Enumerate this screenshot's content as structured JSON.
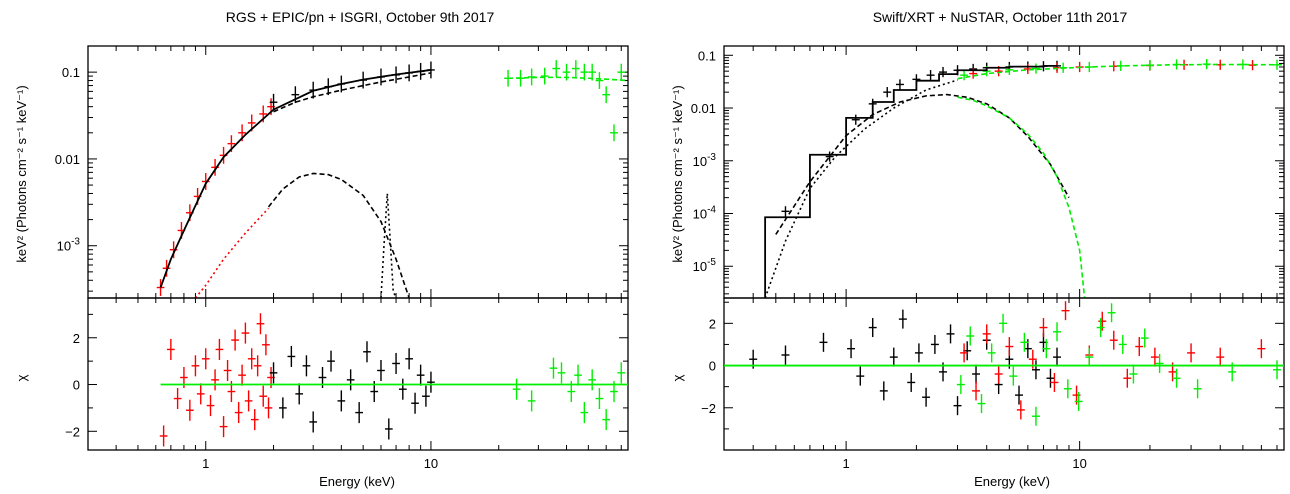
{
  "colors": {
    "black": "#000000",
    "red": "#ff0000",
    "green": "#00ee00"
  },
  "chart_data": [
    {
      "type": "scatter",
      "title": "RGS + EPIC/pn + ISGRI, October 9th 2017",
      "xlabel": "Energy (keV)",
      "xscale": "log",
      "xlim": [
        0.3,
        75
      ],
      "xticks": [
        {
          "value": 1,
          "label": "1"
        },
        {
          "value": 10,
          "label": "10"
        }
      ],
      "top": {
        "ylabel": "keV² (Photons cm⁻² s⁻¹ keV⁻¹)",
        "yscale": "log",
        "ylim": [
          0.00025,
          0.2
        ],
        "yticks": [
          {
            "value": 0.1,
            "label": "0.1"
          },
          {
            "value": 0.01,
            "label": "0.01"
          },
          {
            "value": 0.001,
            "label": "10",
            "sup": "-3"
          }
        ],
        "series": [
          {
            "color": "red",
            "style": "data",
            "x": [
              0.63,
              0.67,
              0.72,
              0.78,
              0.85,
              0.92,
              1.0,
              1.1,
              1.2,
              1.3,
              1.45,
              1.6,
              1.8,
              1.95
            ],
            "y": [
              0.00033,
              0.00055,
              0.0009,
              0.0015,
              0.0024,
              0.0037,
              0.0055,
              0.008,
              0.011,
              0.015,
              0.02,
              0.026,
              0.033,
              0.04
            ]
          },
          {
            "color": "black",
            "style": "data",
            "x": [
              2.0,
              2.5,
              3.0,
              3.5,
              4.0,
              5.0,
              6.0,
              7.0,
              8.0,
              9.0,
              10.0
            ],
            "y": [
              0.045,
              0.055,
              0.062,
              0.068,
              0.073,
              0.081,
              0.088,
              0.093,
              0.098,
              0.102,
              0.106
            ]
          },
          {
            "color": "green",
            "style": "data",
            "x": [
              22,
              25,
              28,
              32,
              36,
              40,
              44,
              48,
              52,
              56,
              60,
              65,
              70
            ],
            "y": [
              0.085,
              0.085,
              0.088,
              0.09,
              0.11,
              0.1,
              0.11,
              0.1,
              0.1,
              0.08,
              0.055,
              0.02,
              0.1
            ]
          },
          {
            "color": "black",
            "style": "solid",
            "x": [
              0.63,
              0.7,
              0.8,
              0.9,
              1.0,
              1.2,
              1.5,
              2.0,
              3.0,
              4.0,
              5.0,
              7.0,
              10.0
            ],
            "y": [
              0.00033,
              0.0007,
              0.0015,
              0.0029,
              0.0052,
              0.0105,
              0.019,
              0.037,
              0.061,
              0.073,
              0.082,
              0.094,
              0.106
            ]
          },
          {
            "color": "black",
            "style": "dashed",
            "x": [
              2.0,
              2.5,
              3.0,
              4.0,
              5.0,
              6.0,
              8.0,
              10.0
            ],
            "y": [
              0.035,
              0.045,
              0.052,
              0.062,
              0.07,
              0.077,
              0.088,
              0.098
            ]
          },
          {
            "color": "green",
            "style": "dashed",
            "x": [
              22,
              30,
              40,
              50,
              60,
              75
            ],
            "y": [
              0.085,
              0.087,
              0.087,
              0.085,
              0.083,
              0.08
            ]
          },
          {
            "color": "red",
            "style": "dotted",
            "x": [
              0.9,
              1.0,
              1.2,
              1.5,
              1.9
            ],
            "y": [
              0.00025,
              0.00035,
              0.0007,
              0.0014,
              0.0027
            ]
          },
          {
            "color": "black",
            "style": "dashed",
            "x": [
              1.9,
              2.2,
              2.6,
              3.0,
              3.5,
              4.0,
              5.0,
              6.0,
              7.0,
              8.0
            ],
            "y": [
              0.0028,
              0.0045,
              0.0062,
              0.0068,
              0.0066,
              0.0058,
              0.0038,
              0.0019,
              0.0007,
              0.00025
            ]
          },
          {
            "color": "black",
            "style": "dotted",
            "x": [
              6.0,
              6.2,
              6.4,
              6.6,
              6.8,
              7.0
            ],
            "y": [
              0.00025,
              0.0011,
              0.004,
              0.0011,
              0.0003,
              0.00025
            ]
          }
        ]
      },
      "bottom": {
        "ylabel": "χ",
        "ylim": [
          -2.8,
          3.7
        ],
        "yticks": [
          {
            "value": 2,
            "label": "2"
          },
          {
            "value": 0,
            "label": "0"
          },
          {
            "value": -2,
            "label": "−2"
          }
        ],
        "series": [
          {
            "color": "red",
            "style": "data",
            "x": [
              0.65,
              0.7,
              0.75,
              0.8,
              0.85,
              0.9,
              0.95,
              1.0,
              1.05,
              1.1,
              1.15,
              1.2,
              1.25,
              1.3,
              1.35,
              1.4,
              1.45,
              1.5,
              1.55,
              1.6,
              1.65,
              1.7,
              1.75,
              1.8,
              1.85,
              1.9,
              1.95
            ],
            "y": [
              -2.2,
              1.5,
              -0.6,
              0.3,
              -1.1,
              0.8,
              -0.4,
              1.1,
              -0.9,
              0.2,
              1.5,
              -1.8,
              0.6,
              -0.3,
              1.9,
              -1.2,
              0.4,
              2.2,
              -0.7,
              1.1,
              -1.5,
              0.8,
              2.6,
              -0.5,
              1.7,
              -1.0,
              0.3
            ]
          },
          {
            "color": "black",
            "style": "data",
            "x": [
              2.0,
              2.2,
              2.4,
              2.6,
              2.8,
              3.0,
              3.3,
              3.6,
              4.0,
              4.4,
              4.8,
              5.2,
              5.6,
              6.0,
              6.5,
              7.0,
              7.5,
              8.0,
              8.5,
              9.0,
              9.5,
              10.0
            ],
            "y": [
              0.5,
              -1.0,
              1.2,
              -0.4,
              0.8,
              -1.6,
              0.3,
              1.0,
              -0.7,
              0.2,
              -1.2,
              1.4,
              -0.3,
              0.6,
              -1.9,
              0.9,
              -0.2,
              1.1,
              -0.8,
              0.4,
              -0.5,
              0.1
            ]
          },
          {
            "color": "green",
            "style": "data",
            "x": [
              24,
              28,
              35,
              38,
              42,
              45,
              48,
              52,
              56,
              60,
              65,
              70
            ],
            "y": [
              -0.2,
              -0.7,
              0.7,
              0.5,
              -0.3,
              0.4,
              -1.2,
              0.2,
              -0.6,
              -1.5,
              -0.3,
              0.5
            ]
          },
          {
            "color": "green",
            "style": "solid",
            "x": [
              0.63,
              75
            ],
            "y": [
              0.0,
              0.0
            ]
          }
        ]
      }
    },
    {
      "type": "scatter",
      "title": "Swift/XRT + NuSTAR, October 11th 2017",
      "xlabel": "Energy (keV)",
      "xscale": "log",
      "xlim": [
        0.3,
        75
      ],
      "xticks": [
        {
          "value": 1,
          "label": "1"
        },
        {
          "value": 10,
          "label": "10"
        }
      ],
      "top": {
        "ylabel": "keV² (Photons cm⁻² s⁻¹ keV⁻¹)",
        "yscale": "log",
        "ylim": [
          2.5e-06,
          0.15
        ],
        "yticks": [
          {
            "value": 0.1,
            "label": "0.1"
          },
          {
            "value": 0.01,
            "label": "0.01"
          },
          {
            "value": 0.001,
            "label": "10",
            "sup": "-3"
          },
          {
            "value": 0.0001,
            "label": "10",
            "sup": "-4"
          },
          {
            "value": 1e-05,
            "label": "10",
            "sup": "-5"
          }
        ],
        "series": [
          {
            "color": "black",
            "style": "data",
            "x": [
              0.55,
              0.85,
              1.1,
              1.3,
              1.5,
              1.7,
              2.0,
              2.3,
              2.6,
              3.0,
              3.5,
              4.0,
              5.0,
              6.0,
              7.0,
              8.0
            ],
            "y": [
              0.00011,
              0.0012,
              0.006,
              0.012,
              0.02,
              0.028,
              0.035,
              0.042,
              0.048,
              0.052,
              0.055,
              0.058,
              0.06,
              0.061,
              0.062,
              0.063
            ]
          },
          {
            "color": "red",
            "style": "data",
            "x": [
              3.5,
              4.5,
              6.0,
              8.0,
              10.0,
              14.0,
              20.0,
              28.0,
              40.0,
              55.0
            ],
            "y": [
              0.045,
              0.05,
              0.055,
              0.058,
              0.06,
              0.062,
              0.064,
              0.066,
              0.066,
              0.065
            ]
          },
          {
            "color": "green",
            "style": "data",
            "x": [
              3.2,
              4.0,
              5.0,
              6.5,
              8.5,
              11.0,
              15.0,
              20.0,
              26.0,
              35.0,
              50.0,
              70.0
            ],
            "y": [
              0.042,
              0.05,
              0.053,
              0.056,
              0.058,
              0.06,
              0.063,
              0.065,
              0.067,
              0.068,
              0.067,
              0.066
            ]
          },
          {
            "color": "black",
            "style": "steps",
            "x": [
              0.45,
              0.7,
              1.0,
              1.3,
              1.6,
              2.0,
              2.5,
              3.0,
              4.0,
              5.0,
              7.0,
              8.0
            ],
            "y": [
              8.5e-05,
              0.0013,
              0.0065,
              0.013,
              0.022,
              0.033,
              0.044,
              0.052,
              0.058,
              0.061,
              0.063,
              0.064
            ]
          },
          {
            "color": "black",
            "style": "dashed",
            "x": [
              0.5,
              0.7,
              1.0,
              1.3,
              1.7,
              2.2,
              2.7,
              3.3,
              4.0,
              5.0,
              6.0,
              7.5,
              9.0
            ],
            "y": [
              4e-05,
              0.0004,
              0.003,
              0.0075,
              0.013,
              0.017,
              0.018,
              0.016,
              0.012,
              0.0065,
              0.0029,
              0.00085,
              0.0002
            ]
          },
          {
            "color": "black",
            "style": "dotted",
            "x": [
              0.45,
              0.55,
              0.7,
              0.9,
              1.2,
              1.6,
              2.2,
              3.0
            ],
            "y": [
              2.5e-06,
              3e-05,
              0.0003,
              0.0012,
              0.004,
              0.01,
              0.022,
              0.034
            ]
          },
          {
            "color": "green",
            "style": "dashed",
            "x": [
              3.0,
              3.5,
              4.0,
              5.0,
              6.0,
              7.0,
              8.0,
              9.0,
              10.0,
              10.5
            ],
            "y": [
              0.016,
              0.014,
              0.011,
              0.0065,
              0.0032,
              0.0014,
              0.0005,
              0.00013,
              2e-05,
              2.5e-06
            ]
          },
          {
            "color": "green",
            "style": "dashed",
            "x": [
              3.0,
              4.0,
              6.0,
              10.0,
              15.0,
              25.0,
              40.0,
              75.0
            ],
            "y": [
              0.036,
              0.045,
              0.053,
              0.059,
              0.063,
              0.066,
              0.067,
              0.066
            ]
          }
        ]
      },
      "bottom": {
        "ylabel": "χ",
        "ylim": [
          -4.0,
          3.2
        ],
        "yticks": [
          {
            "value": 2,
            "label": "2"
          },
          {
            "value": 0,
            "label": "0"
          },
          {
            "value": -2,
            "label": "−2"
          }
        ],
        "series": [
          {
            "color": "black",
            "style": "data",
            "x": [
              0.4,
              0.55,
              0.8,
              1.05,
              1.15,
              1.3,
              1.45,
              1.6,
              1.75,
              1.9,
              2.05,
              2.2,
              2.4,
              2.6,
              2.8,
              3.0,
              3.3,
              3.6,
              4.0,
              4.5,
              5.0,
              5.5,
              6.0,
              6.5,
              7.0,
              7.5,
              8.0
            ],
            "y": [
              0.3,
              0.5,
              1.1,
              0.8,
              -0.5,
              1.8,
              -1.2,
              0.4,
              2.2,
              -0.8,
              0.6,
              -1.5,
              1.0,
              -0.3,
              1.5,
              -1.9,
              0.7,
              -0.4,
              1.2,
              -0.9,
              0.3,
              -1.4,
              0.8,
              -0.2,
              1.1,
              -0.6,
              0.4
            ]
          },
          {
            "color": "red",
            "style": "data",
            "x": [
              3.2,
              3.6,
              4.0,
              4.5,
              5.0,
              5.6,
              6.3,
              7.0,
              7.8,
              8.7,
              9.7,
              11.0,
              12.5,
              14.0,
              16.0,
              18.0,
              21.0,
              25.0,
              30.0,
              40.0,
              60.0
            ],
            "y": [
              0.6,
              -1.2,
              1.5,
              -0.4,
              0.9,
              -2.1,
              0.3,
              1.8,
              -0.8,
              2.6,
              -1.4,
              0.5,
              2.1,
              1.2,
              -0.6,
              0.9,
              0.4,
              -0.3,
              0.6,
              0.4,
              0.8
            ]
          },
          {
            "color": "green",
            "style": "data",
            "x": [
              3.1,
              3.4,
              3.8,
              4.2,
              4.7,
              5.2,
              5.8,
              6.5,
              7.2,
              8.0,
              8.9,
              9.9,
              11.0,
              12.3,
              13.7,
              15.3,
              17.0,
              19.0,
              22.0,
              26.0,
              32.0,
              45.0,
              70.0
            ],
            "y": [
              -0.9,
              1.4,
              -1.8,
              0.6,
              2.0,
              -0.5,
              1.1,
              -2.4,
              0.8,
              1.6,
              -1.1,
              -1.7,
              0.4,
              1.8,
              2.5,
              1.0,
              -0.4,
              1.3,
              0.1,
              -0.6,
              -1.1,
              -0.3,
              -0.2
            ]
          },
          {
            "color": "green",
            "style": "solid",
            "x": [
              0.3,
              75
            ],
            "y": [
              0.0,
              0.0
            ]
          }
        ]
      }
    }
  ]
}
